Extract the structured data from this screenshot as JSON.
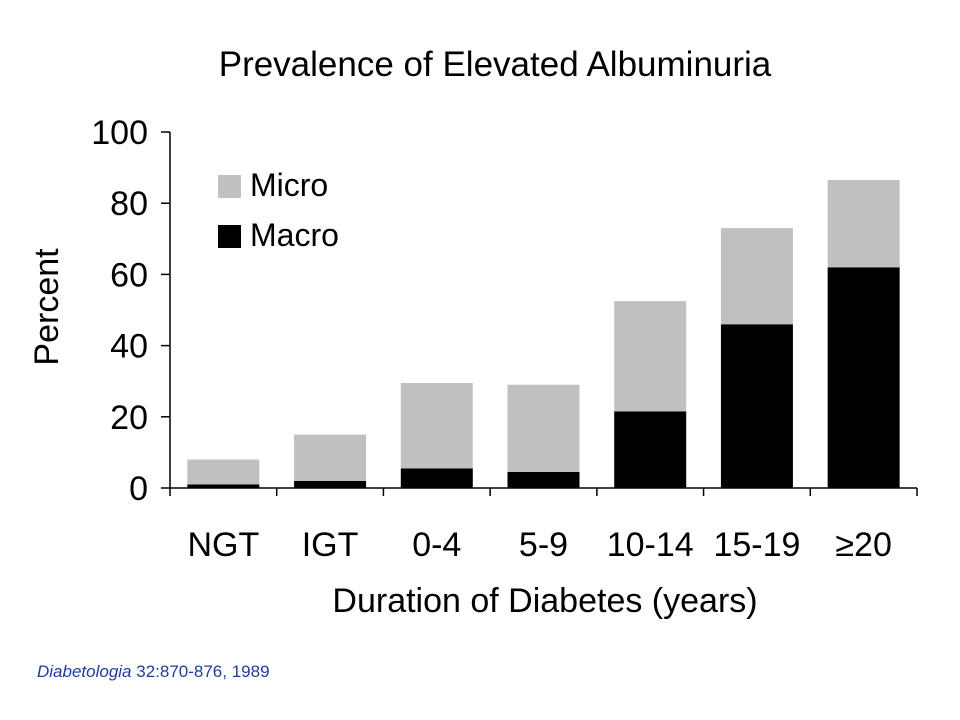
{
  "chart_data": {
    "type": "bar",
    "stacked": true,
    "title": "Prevalence of Elevated Albuminuria",
    "xlabel": "Duration of Diabetes (years)",
    "ylabel": "Percent",
    "ylim": [
      0,
      100
    ],
    "yticks": [
      "0",
      "20",
      "40",
      "60",
      "80",
      "100"
    ],
    "categories": [
      "NGT",
      "IGT",
      "0-4",
      "5-9",
      "10-14",
      "15-19",
      "≥20"
    ],
    "series": [
      {
        "name": "Macro",
        "color": "#000000",
        "values": [
          1,
          2,
          5.5,
          4.5,
          21.5,
          46,
          62
        ]
      },
      {
        "name": "Micro",
        "color": "#c0c0c0",
        "values": [
          7,
          13,
          24,
          24.5,
          31,
          27,
          24.5
        ]
      }
    ],
    "legend": {
      "placement": "top-left",
      "entries": [
        "Micro",
        "Macro"
      ]
    },
    "grid": false
  },
  "citation": {
    "journal": "Diabetologia",
    "reference": " 32:870-876, 1989"
  }
}
